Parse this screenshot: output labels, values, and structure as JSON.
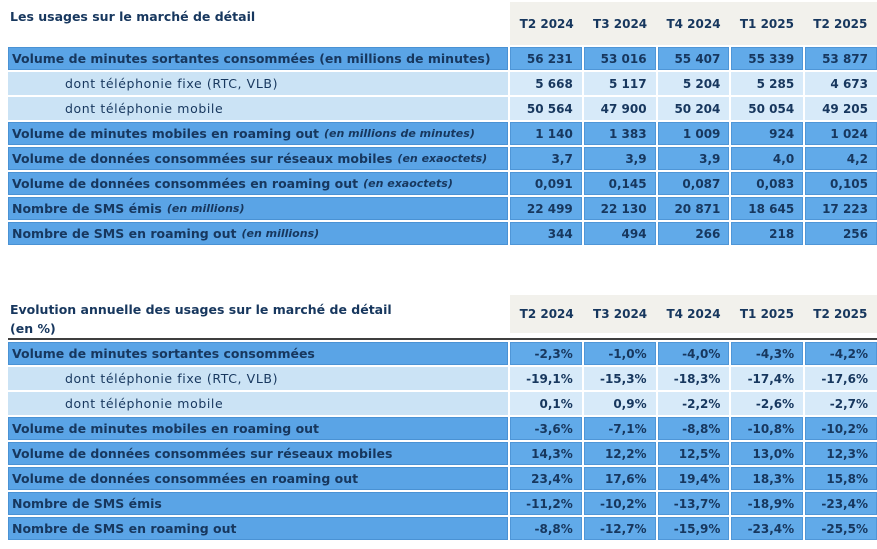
{
  "colors": {
    "row_dark_label": "#5AA4E6",
    "row_dark_value": "#61AAE9",
    "row_light_label": "#CBE3F5",
    "row_light_value": "#D7EAF9",
    "header_band_bg": "#F2F1EC",
    "text_navy": "#17375E",
    "separator_line": "#3F3F3F"
  },
  "columns": [
    "T2 2024",
    "T3 2024",
    "T4 2024",
    "T1 2025",
    "T2 2025"
  ],
  "table1": {
    "title": "Les usages sur le marché de détail",
    "rows": [
      {
        "label": "Volume de minutes sortantes consommées (en millions de minutes)",
        "unit": "",
        "indent": false,
        "values": [
          "56 231",
          "53 016",
          "55 407",
          "55 339",
          "53 877"
        ]
      },
      {
        "label": "dont téléphonie fixe (RTC, VLB)",
        "unit": "",
        "indent": true,
        "values": [
          "5 668",
          "5 117",
          "5 204",
          "5 285",
          "4 673"
        ]
      },
      {
        "label": "dont téléphonie mobile",
        "unit": "",
        "indent": true,
        "values": [
          "50 564",
          "47 900",
          "50 204",
          "50 054",
          "49 205"
        ]
      },
      {
        "label": "Volume de minutes mobiles en roaming out",
        "unit": "(en millions de minutes)",
        "indent": false,
        "values": [
          "1 140",
          "1 383",
          "1 009",
          "924",
          "1 024"
        ]
      },
      {
        "label": "Volume de données consommées sur réseaux mobiles",
        "unit": "(en exaoctets)",
        "indent": false,
        "values": [
          "3,7",
          "3,9",
          "3,9",
          "4,0",
          "4,2"
        ]
      },
      {
        "label": "Volume de données consommées en roaming out",
        "unit": "(en exaoctets)",
        "indent": false,
        "values": [
          "0,091",
          "0,145",
          "0,087",
          "0,083",
          "0,105"
        ]
      },
      {
        "label": "Nombre de SMS émis",
        "unit": "(en millions)",
        "indent": false,
        "values": [
          "22 499",
          "22 130",
          "20 871",
          "18 645",
          "17 223"
        ]
      },
      {
        "label": "Nombre de SMS en roaming out",
        "unit": "(en millions)",
        "indent": false,
        "values": [
          "344",
          "494",
          "266",
          "218",
          "256"
        ]
      }
    ]
  },
  "table2": {
    "title_line1": "Evolution annuelle des usages sur le marché de détail",
    "title_line2": "(en %)",
    "rows": [
      {
        "label": "Volume de minutes sortantes consommées",
        "unit": "",
        "indent": false,
        "values": [
          "-2,3%",
          "-1,0%",
          "-4,0%",
          "-4,3%",
          "-4,2%"
        ]
      },
      {
        "label": "dont téléphonie fixe (RTC, VLB)",
        "unit": "",
        "indent": true,
        "values": [
          "-19,1%",
          "-15,3%",
          "-18,3%",
          "-17,4%",
          "-17,6%"
        ]
      },
      {
        "label": "dont téléphonie mobile",
        "unit": "",
        "indent": true,
        "values": [
          "0,1%",
          "0,9%",
          "-2,2%",
          "-2,6%",
          "-2,7%"
        ]
      },
      {
        "label": "Volume de minutes mobiles en roaming out",
        "unit": "",
        "indent": false,
        "values": [
          "-3,6%",
          "-7,1%",
          "-8,8%",
          "-10,8%",
          "-10,2%"
        ]
      },
      {
        "label": "Volume de données consommées sur réseaux mobiles",
        "unit": "",
        "indent": false,
        "values": [
          "14,3%",
          "12,2%",
          "12,5%",
          "13,0%",
          "12,3%"
        ]
      },
      {
        "label": "Volume de données consommées en roaming out",
        "unit": "",
        "indent": false,
        "values": [
          "23,4%",
          "17,6%",
          "19,4%",
          "18,3%",
          "15,8%"
        ]
      },
      {
        "label": "Nombre de SMS émis",
        "unit": "",
        "indent": false,
        "values": [
          "-11,2%",
          "-10,2%",
          "-13,7%",
          "-18,9%",
          "-23,4%"
        ]
      },
      {
        "label": "Nombre de SMS en roaming out",
        "unit": "",
        "indent": false,
        "values": [
          "-8,8%",
          "-12,7%",
          "-15,9%",
          "-23,4%",
          "-25,5%"
        ]
      }
    ]
  }
}
